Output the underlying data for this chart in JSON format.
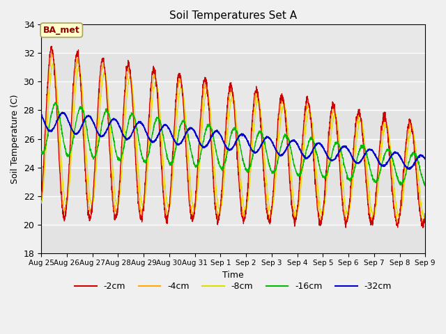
{
  "title": "Soil Temperatures Set A",
  "xlabel": "Time",
  "ylabel": "Soil Temperature (C)",
  "ylim": [
    18,
    34
  ],
  "annotation": "BA_met",
  "colors": {
    "-2cm": "#cc0000",
    "-4cm": "#ffaa00",
    "-8cm": "#dddd00",
    "-16cm": "#00bb00",
    "-32cm": "#0000cc"
  },
  "legend_labels": [
    "-2cm",
    "-4cm",
    "-8cm",
    "-16cm",
    "-32cm"
  ],
  "plot_bg": "#e8e8e8",
  "fig_bg": "#f0f0f0",
  "grid_color": "#ffffff",
  "n_days": 15,
  "pts_per_day": 144
}
